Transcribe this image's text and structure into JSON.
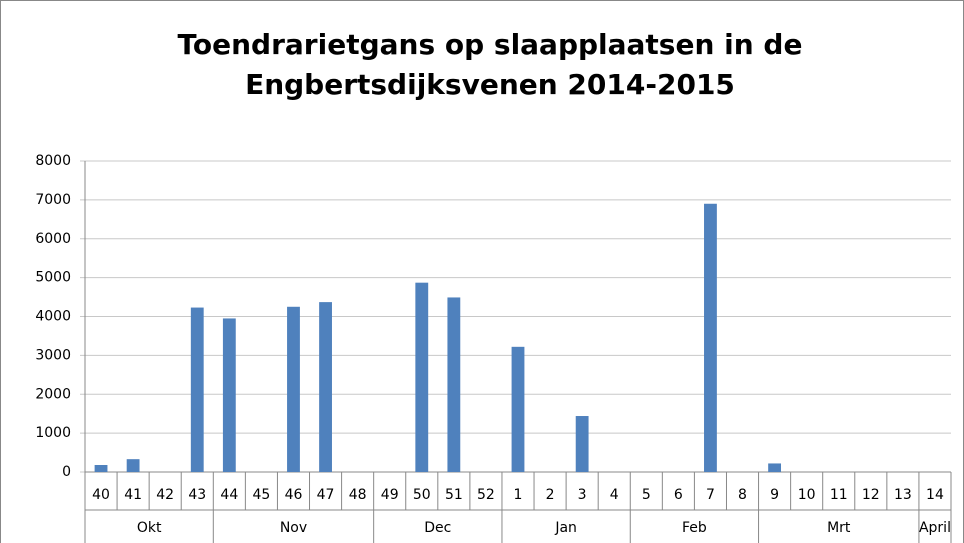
{
  "chart_data": {
    "type": "bar",
    "title": [
      "Toendrarietgans op slaapplaatsen in de",
      "Engbertsdijksvenen 2014-2015"
    ],
    "categories": [
      "40",
      "41",
      "42",
      "43",
      "44",
      "45",
      "46",
      "47",
      "48",
      "49",
      "50",
      "51",
      "52",
      "1",
      "2",
      "3",
      "4",
      "5",
      "6",
      "7",
      "8",
      "9",
      "10",
      "11",
      "12",
      "13",
      "14"
    ],
    "values": [
      180,
      330,
      0,
      4230,
      3950,
      0,
      4250,
      4370,
      0,
      0,
      4870,
      4490,
      0,
      3220,
      0,
      1440,
      0,
      0,
      0,
      6900,
      0,
      220,
      0,
      0,
      0,
      0,
      0
    ],
    "groups": [
      {
        "label": "Okt",
        "span": 4
      },
      {
        "label": "Nov",
        "span": 5
      },
      {
        "label": "Dec",
        "span": 4
      },
      {
        "label": "Jan",
        "span": 4
      },
      {
        "label": "Feb",
        "span": 4
      },
      {
        "label": "Mrt",
        "span": 5
      },
      {
        "label": "April",
        "span": 1
      }
    ],
    "color": "#4f81bd",
    "ylim": [
      0,
      8000
    ],
    "yticks": [
      0,
      1000,
      2000,
      3000,
      4000,
      5000,
      6000,
      7000,
      8000
    ],
    "grid": true
  }
}
